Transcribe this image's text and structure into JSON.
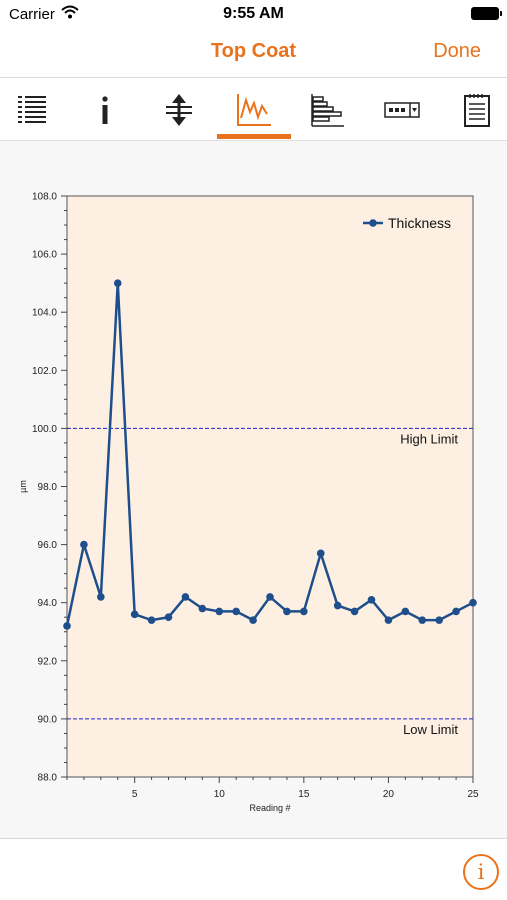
{
  "status_bar": {
    "carrier": "Carrier",
    "time": "9:55 AM"
  },
  "nav": {
    "title": "Top Coat",
    "done_label": "Done"
  },
  "toolbar": {
    "selected": "chart",
    "tools": [
      "list-icon",
      "info-icon",
      "limits-icon",
      "chart-icon",
      "histogram-icon",
      "label-field-icon",
      "notes-icon"
    ]
  },
  "footer": {
    "info_label": "i"
  },
  "colors": {
    "accent": "#e8731c",
    "series": "#1f4e8c",
    "plot_bg": "#fdf0e2",
    "limit_line": "#2222cc"
  },
  "chart_data": {
    "type": "line",
    "xlabel": "Reading #",
    "ylabel": "µm",
    "xlim": [
      1,
      25
    ],
    "ylim": [
      88.0,
      108.0
    ],
    "x_ticks": [
      5,
      10,
      15,
      20,
      25
    ],
    "y_ticks": [
      88.0,
      90.0,
      92.0,
      94.0,
      96.0,
      98.0,
      100.0,
      102.0,
      104.0,
      106.0,
      108.0
    ],
    "y_tick_labels": [
      "88.0",
      "90.0",
      "92.0",
      "94.0",
      "96.0",
      "98.0",
      "100.0",
      "102.0",
      "104.0",
      "106.0",
      "108.0"
    ],
    "legend_position": "top-right",
    "grid": false,
    "series": [
      {
        "name": "Thickness",
        "x": [
          1,
          2,
          3,
          4,
          5,
          6,
          7,
          8,
          9,
          10,
          11,
          12,
          13,
          14,
          15,
          16,
          17,
          18,
          19,
          20,
          21,
          22,
          23,
          24,
          25
        ],
        "values": [
          93.2,
          96.0,
          94.2,
          105.0,
          93.6,
          93.4,
          93.5,
          94.2,
          93.8,
          93.7,
          93.7,
          93.4,
          94.2,
          93.7,
          93.7,
          95.7,
          93.9,
          93.7,
          94.1,
          93.4,
          93.7,
          93.4,
          93.4,
          93.7,
          94.0
        ]
      }
    ],
    "limits": [
      {
        "label": "High Limit",
        "value": 100.0
      },
      {
        "label": "Low Limit",
        "value": 90.0
      }
    ]
  }
}
